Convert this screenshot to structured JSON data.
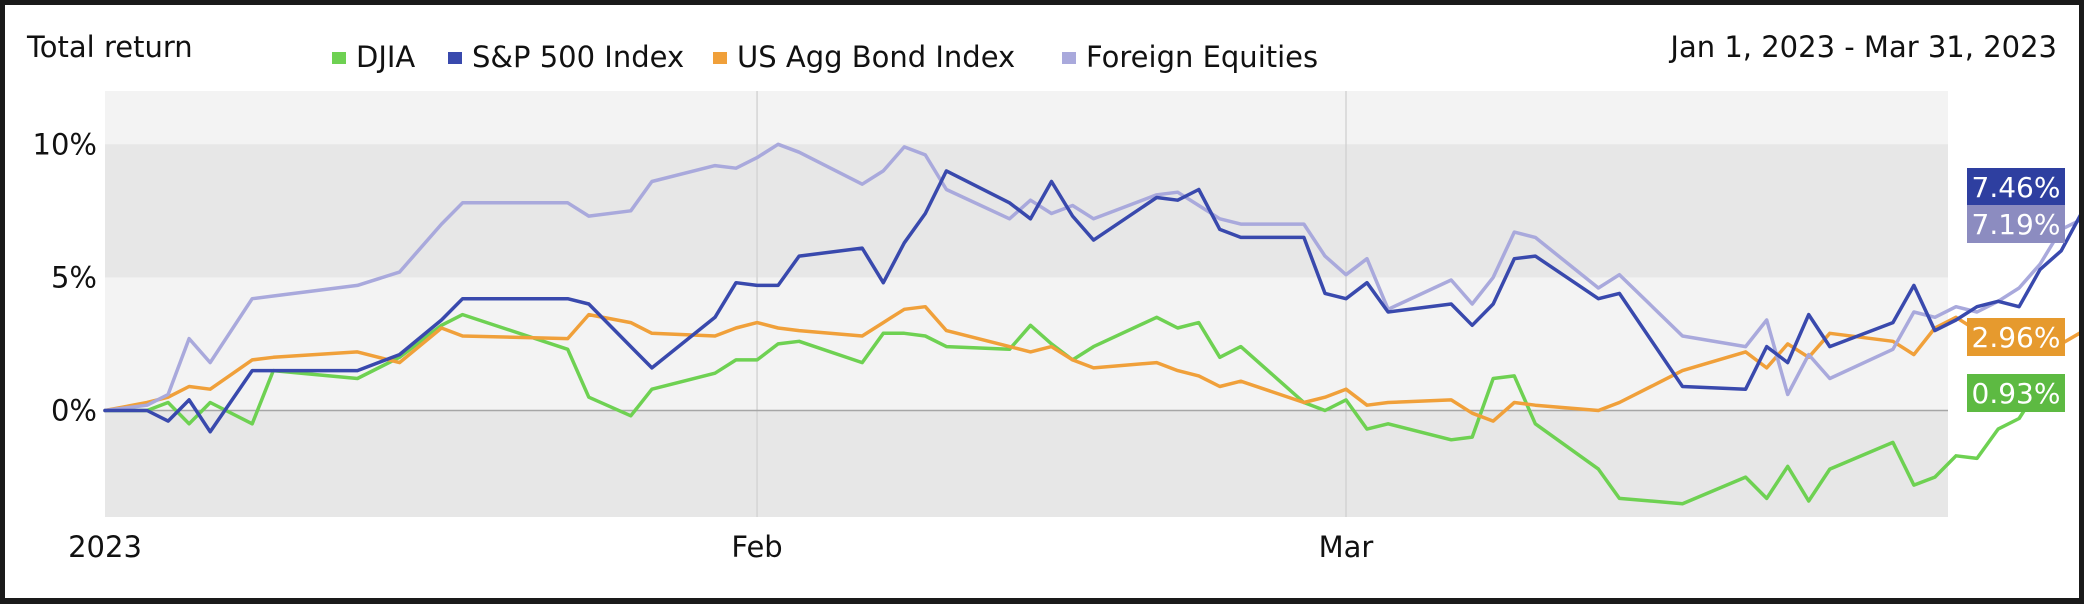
{
  "header": {
    "title": "Total return",
    "date_range": "Jan 1, 2023 - Mar 31, 2023"
  },
  "chart_data": {
    "type": "line",
    "title": "Total return",
    "subtitle": "Jan 1, 2023 - Mar 31, 2023",
    "xlabel": "",
    "ylabel": "",
    "xlim": [
      "2023-01-01",
      "2023-03-31"
    ],
    "ylim": [
      -4,
      12
    ],
    "y_ticks": [
      {
        "value": 10,
        "label": "10%"
      },
      {
        "value": 5,
        "label": "5%"
      },
      {
        "value": 0,
        "label": "0%"
      }
    ],
    "x_ticks": [
      {
        "value": "2023-01-01",
        "label": "2023"
      },
      {
        "value": "2023-02-01",
        "label": "Feb"
      },
      {
        "value": "2023-03-01",
        "label": "Mar"
      }
    ],
    "grid": true,
    "legend_position": "top",
    "series": [
      {
        "name": "DJIA",
        "color": "#6ed152",
        "end_label": "0.93%",
        "points": [
          [
            "2023-01-01",
            0.0
          ],
          [
            "2023-01-03",
            0.0
          ],
          [
            "2023-01-04",
            0.3
          ],
          [
            "2023-01-05",
            -0.5
          ],
          [
            "2023-01-06",
            0.3
          ],
          [
            "2023-01-08",
            -0.5
          ],
          [
            "2023-01-09",
            1.5
          ],
          [
            "2023-01-13",
            1.2
          ],
          [
            "2023-01-15",
            2.0
          ],
          [
            "2023-01-17",
            3.2
          ],
          [
            "2023-01-18",
            3.6
          ],
          [
            "2023-01-23",
            2.3
          ],
          [
            "2023-01-24",
            0.5
          ],
          [
            "2023-01-26",
            -0.2
          ],
          [
            "2023-01-27",
            0.8
          ],
          [
            "2023-01-30",
            1.4
          ],
          [
            "2023-01-31",
            1.9
          ],
          [
            "2023-02-01",
            1.9
          ],
          [
            "2023-02-02",
            2.5
          ],
          [
            "2023-02-03",
            2.6
          ],
          [
            "2023-02-06",
            1.8
          ],
          [
            "2023-02-07",
            2.9
          ],
          [
            "2023-02-08",
            2.9
          ],
          [
            "2023-02-09",
            2.8
          ],
          [
            "2023-02-10",
            2.4
          ],
          [
            "2023-02-13",
            2.3
          ],
          [
            "2023-02-14",
            3.2
          ],
          [
            "2023-02-15",
            2.5
          ],
          [
            "2023-02-16",
            1.9
          ],
          [
            "2023-02-17",
            2.4
          ],
          [
            "2023-02-20",
            3.5
          ],
          [
            "2023-02-21",
            3.1
          ],
          [
            "2023-02-22",
            3.3
          ],
          [
            "2023-02-23",
            2.0
          ],
          [
            "2023-02-24",
            2.4
          ],
          [
            "2023-02-27",
            0.3
          ],
          [
            "2023-02-28",
            0.0
          ],
          [
            "2023-03-01",
            0.4
          ],
          [
            "2023-03-02",
            -0.7
          ],
          [
            "2023-03-03",
            -0.5
          ],
          [
            "2023-03-06",
            -1.1
          ],
          [
            "2023-03-07",
            -1.0
          ],
          [
            "2023-03-08",
            1.2
          ],
          [
            "2023-03-09",
            1.3
          ],
          [
            "2023-03-10",
            -0.5
          ],
          [
            "2023-03-13",
            -2.2
          ],
          [
            "2023-03-14",
            -3.3
          ],
          [
            "2023-03-17",
            -3.5
          ],
          [
            "2023-03-20",
            -2.5
          ],
          [
            "2023-03-21",
            -3.3
          ],
          [
            "2023-03-22",
            -2.1
          ],
          [
            "2023-03-23",
            -3.4
          ],
          [
            "2023-03-24",
            -2.2
          ],
          [
            "2023-03-27",
            -1.2
          ],
          [
            "2023-03-28",
            -2.8
          ],
          [
            "2023-03-29",
            -2.5
          ],
          [
            "2023-03-30",
            -1.7
          ],
          [
            "2023-03-31",
            -1.8
          ],
          [
            "2023-04-01",
            -0.7
          ],
          [
            "2023-04-02",
            -0.3
          ],
          [
            "2023-04-03",
            0.93
          ]
        ]
      },
      {
        "name": "S&P 500 Index",
        "color": "#3949ad",
        "end_label": "7.46%",
        "points": [
          [
            "2023-01-01",
            0.0
          ],
          [
            "2023-01-03",
            0.0
          ],
          [
            "2023-01-04",
            -0.4
          ],
          [
            "2023-01-05",
            0.4
          ],
          [
            "2023-01-06",
            -0.8
          ],
          [
            "2023-01-08",
            1.5
          ],
          [
            "2023-01-09",
            1.5
          ],
          [
            "2023-01-13",
            1.5
          ],
          [
            "2023-01-15",
            2.1
          ],
          [
            "2023-01-17",
            3.4
          ],
          [
            "2023-01-18",
            4.2
          ],
          [
            "2023-01-23",
            4.2
          ],
          [
            "2023-01-24",
            4.0
          ],
          [
            "2023-01-26",
            2.4
          ],
          [
            "2023-01-27",
            1.6
          ],
          [
            "2023-01-30",
            3.5
          ],
          [
            "2023-01-31",
            4.8
          ],
          [
            "2023-02-01",
            4.7
          ],
          [
            "2023-02-02",
            4.7
          ],
          [
            "2023-02-03",
            5.8
          ],
          [
            "2023-02-06",
            6.1
          ],
          [
            "2023-02-07",
            4.8
          ],
          [
            "2023-02-08",
            6.3
          ],
          [
            "2023-02-09",
            7.4
          ],
          [
            "2023-02-10",
            9.0
          ],
          [
            "2023-02-13",
            7.8
          ],
          [
            "2023-02-14",
            7.2
          ],
          [
            "2023-02-15",
            8.6
          ],
          [
            "2023-02-16",
            7.3
          ],
          [
            "2023-02-17",
            6.4
          ],
          [
            "2023-02-20",
            8.0
          ],
          [
            "2023-02-21",
            7.9
          ],
          [
            "2023-02-22",
            8.3
          ],
          [
            "2023-02-23",
            6.8
          ],
          [
            "2023-02-24",
            6.5
          ],
          [
            "2023-02-27",
            6.5
          ],
          [
            "2023-02-28",
            4.4
          ],
          [
            "2023-03-01",
            4.2
          ],
          [
            "2023-03-02",
            4.8
          ],
          [
            "2023-03-03",
            3.7
          ],
          [
            "2023-03-06",
            4.0
          ],
          [
            "2023-03-07",
            3.2
          ],
          [
            "2023-03-08",
            4.0
          ],
          [
            "2023-03-09",
            5.7
          ],
          [
            "2023-03-10",
            5.8
          ],
          [
            "2023-03-13",
            4.2
          ],
          [
            "2023-03-14",
            4.4
          ],
          [
            "2023-03-17",
            0.9
          ],
          [
            "2023-03-20",
            0.8
          ],
          [
            "2023-03-21",
            2.4
          ],
          [
            "2023-03-22",
            1.8
          ],
          [
            "2023-03-23",
            3.6
          ],
          [
            "2023-03-24",
            2.4
          ],
          [
            "2023-03-27",
            3.3
          ],
          [
            "2023-03-28",
            4.7
          ],
          [
            "2023-03-29",
            3.0
          ],
          [
            "2023-03-30",
            3.4
          ],
          [
            "2023-03-31",
            3.9
          ],
          [
            "2023-04-01",
            4.1
          ],
          [
            "2023-04-02",
            3.9
          ],
          [
            "2023-04-03",
            5.3
          ],
          [
            "2023-04-04",
            6.0
          ],
          [
            "2023-04-05",
            7.46
          ]
        ]
      },
      {
        "name": "US Agg Bond Index",
        "color": "#f0a03a",
        "end_label": "2.96%",
        "points": [
          [
            "2023-01-01",
            0.0
          ],
          [
            "2023-01-03",
            0.3
          ],
          [
            "2023-01-04",
            0.5
          ],
          [
            "2023-01-05",
            0.9
          ],
          [
            "2023-01-06",
            0.8
          ],
          [
            "2023-01-08",
            1.9
          ],
          [
            "2023-01-09",
            2.0
          ],
          [
            "2023-01-13",
            2.2
          ],
          [
            "2023-01-15",
            1.8
          ],
          [
            "2023-01-17",
            3.1
          ],
          [
            "2023-01-18",
            2.8
          ],
          [
            "2023-01-23",
            2.7
          ],
          [
            "2023-01-24",
            3.6
          ],
          [
            "2023-01-26",
            3.3
          ],
          [
            "2023-01-27",
            2.9
          ],
          [
            "2023-01-30",
            2.8
          ],
          [
            "2023-01-31",
            3.1
          ],
          [
            "2023-02-01",
            3.3
          ],
          [
            "2023-02-02",
            3.1
          ],
          [
            "2023-02-03",
            3.0
          ],
          [
            "2023-02-06",
            2.8
          ],
          [
            "2023-02-07",
            3.3
          ],
          [
            "2023-02-08",
            3.8
          ],
          [
            "2023-02-09",
            3.9
          ],
          [
            "2023-02-10",
            3.0
          ],
          [
            "2023-02-13",
            2.4
          ],
          [
            "2023-02-14",
            2.2
          ],
          [
            "2023-02-15",
            2.4
          ],
          [
            "2023-02-16",
            1.9
          ],
          [
            "2023-02-17",
            1.6
          ],
          [
            "2023-02-20",
            1.8
          ],
          [
            "2023-02-21",
            1.5
          ],
          [
            "2023-02-22",
            1.3
          ],
          [
            "2023-02-23",
            0.9
          ],
          [
            "2023-02-24",
            1.1
          ],
          [
            "2023-02-27",
            0.3
          ],
          [
            "2023-02-28",
            0.5
          ],
          [
            "2023-03-01",
            0.8
          ],
          [
            "2023-03-02",
            0.2
          ],
          [
            "2023-03-03",
            0.3
          ],
          [
            "2023-03-06",
            0.4
          ],
          [
            "2023-03-07",
            -0.1
          ],
          [
            "2023-03-08",
            -0.4
          ],
          [
            "2023-03-09",
            0.3
          ],
          [
            "2023-03-10",
            0.2
          ],
          [
            "2023-03-13",
            0.0
          ],
          [
            "2023-03-14",
            0.3
          ],
          [
            "2023-03-17",
            1.5
          ],
          [
            "2023-03-20",
            2.2
          ],
          [
            "2023-03-21",
            1.6
          ],
          [
            "2023-03-22",
            2.5
          ],
          [
            "2023-03-23",
            2.0
          ],
          [
            "2023-03-24",
            2.9
          ],
          [
            "2023-03-27",
            2.6
          ],
          [
            "2023-03-28",
            2.1
          ],
          [
            "2023-03-29",
            3.1
          ],
          [
            "2023-03-30",
            3.5
          ],
          [
            "2023-03-31",
            3.0
          ],
          [
            "2023-04-01",
            2.5
          ],
          [
            "2023-04-02",
            2.3
          ],
          [
            "2023-04-03",
            2.3
          ],
          [
            "2023-04-04",
            2.5
          ],
          [
            "2023-04-05",
            2.96
          ]
        ]
      },
      {
        "name": "Foreign Equities",
        "color": "#a9a9dc",
        "end_label": "7.19%",
        "points": [
          [
            "2023-01-01",
            0.0
          ],
          [
            "2023-01-03",
            0.2
          ],
          [
            "2023-01-04",
            0.6
          ],
          [
            "2023-01-05",
            2.7
          ],
          [
            "2023-01-06",
            1.8
          ],
          [
            "2023-01-08",
            4.2
          ],
          [
            "2023-01-09",
            4.3
          ],
          [
            "2023-01-13",
            4.7
          ],
          [
            "2023-01-15",
            5.2
          ],
          [
            "2023-01-17",
            7.0
          ],
          [
            "2023-01-18",
            7.8
          ],
          [
            "2023-01-23",
            7.8
          ],
          [
            "2023-01-24",
            7.3
          ],
          [
            "2023-01-26",
            7.5
          ],
          [
            "2023-01-27",
            8.6
          ],
          [
            "2023-01-30",
            9.2
          ],
          [
            "2023-01-31",
            9.1
          ],
          [
            "2023-02-01",
            9.5
          ],
          [
            "2023-02-02",
            10.0
          ],
          [
            "2023-02-03",
            9.7
          ],
          [
            "2023-02-06",
            8.5
          ],
          [
            "2023-02-07",
            9.0
          ],
          [
            "2023-02-08",
            9.9
          ],
          [
            "2023-02-09",
            9.6
          ],
          [
            "2023-02-10",
            8.3
          ],
          [
            "2023-02-13",
            7.2
          ],
          [
            "2023-02-14",
            7.9
          ],
          [
            "2023-02-15",
            7.4
          ],
          [
            "2023-02-16",
            7.7
          ],
          [
            "2023-02-17",
            7.2
          ],
          [
            "2023-02-20",
            8.1
          ],
          [
            "2023-02-21",
            8.2
          ],
          [
            "2023-02-22",
            7.7
          ],
          [
            "2023-02-23",
            7.2
          ],
          [
            "2023-02-24",
            7.0
          ],
          [
            "2023-02-27",
            7.0
          ],
          [
            "2023-02-28",
            5.8
          ],
          [
            "2023-03-01",
            5.1
          ],
          [
            "2023-03-02",
            5.7
          ],
          [
            "2023-03-03",
            3.8
          ],
          [
            "2023-03-06",
            4.9
          ],
          [
            "2023-03-07",
            4.0
          ],
          [
            "2023-03-08",
            5.0
          ],
          [
            "2023-03-09",
            6.7
          ],
          [
            "2023-03-10",
            6.5
          ],
          [
            "2023-03-13",
            4.6
          ],
          [
            "2023-03-14",
            5.1
          ],
          [
            "2023-03-17",
            2.8
          ],
          [
            "2023-03-20",
            2.4
          ],
          [
            "2023-03-21",
            3.4
          ],
          [
            "2023-03-22",
            0.6
          ],
          [
            "2023-03-23",
            2.1
          ],
          [
            "2023-03-24",
            1.2
          ],
          [
            "2023-03-27",
            2.3
          ],
          [
            "2023-03-28",
            3.7
          ],
          [
            "2023-03-29",
            3.5
          ],
          [
            "2023-03-30",
            3.9
          ],
          [
            "2023-03-31",
            3.7
          ],
          [
            "2023-04-01",
            4.1
          ],
          [
            "2023-04-02",
            4.6
          ],
          [
            "2023-04-03",
            5.5
          ],
          [
            "2023-04-04",
            6.8
          ],
          [
            "2023-04-05",
            7.19
          ]
        ]
      }
    ]
  }
}
